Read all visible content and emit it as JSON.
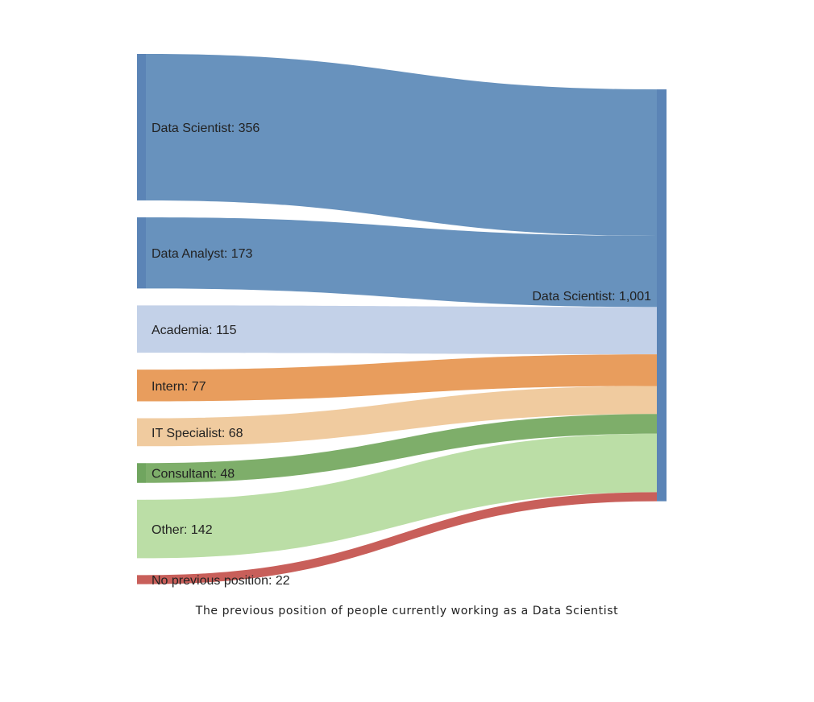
{
  "chart_data": {
    "type": "sankey",
    "title": "",
    "caption": "The previous position of people currently working as a Data Scientist",
    "target": {
      "name": "Data Scientist",
      "value": 1001,
      "label": "Data Scientist: 1,001",
      "color": "#5b84b6"
    },
    "sources": [
      {
        "name": "Data Scientist",
        "value": 356,
        "label": "Data Scientist: 356",
        "color": "#5b84b6",
        "flow_color": "#6892bd"
      },
      {
        "name": "Data Analyst",
        "value": 173,
        "label": "Data Analyst: 173",
        "color": "#5b84b6",
        "flow_color": "#6892bd"
      },
      {
        "name": "Academia",
        "value": 115,
        "label": "Academia: 115",
        "color": "#c3d1e8",
        "flow_color": "#c3d1e8"
      },
      {
        "name": "Intern",
        "value": 77,
        "label": "Intern: 77",
        "color": "#e89d5d",
        "flow_color": "#e89d5d"
      },
      {
        "name": "IT Specialist",
        "value": 68,
        "label": "IT Specialist: 68",
        "color": "#f0cb9f",
        "flow_color": "#f0cb9f"
      },
      {
        "name": "Consultant",
        "value": 48,
        "label": "Consultant: 48",
        "color": "#70a55f",
        "flow_color": "#7eae6a"
      },
      {
        "name": "Other",
        "value": 142,
        "label": "Other: 142",
        "color": "#bbdea6",
        "flow_color": "#bbdea6"
      },
      {
        "name": "No previous position",
        "value": 22,
        "label": "No previous position: 22",
        "color": "#c85f5a",
        "flow_color": "#c85f5a"
      }
    ]
  }
}
